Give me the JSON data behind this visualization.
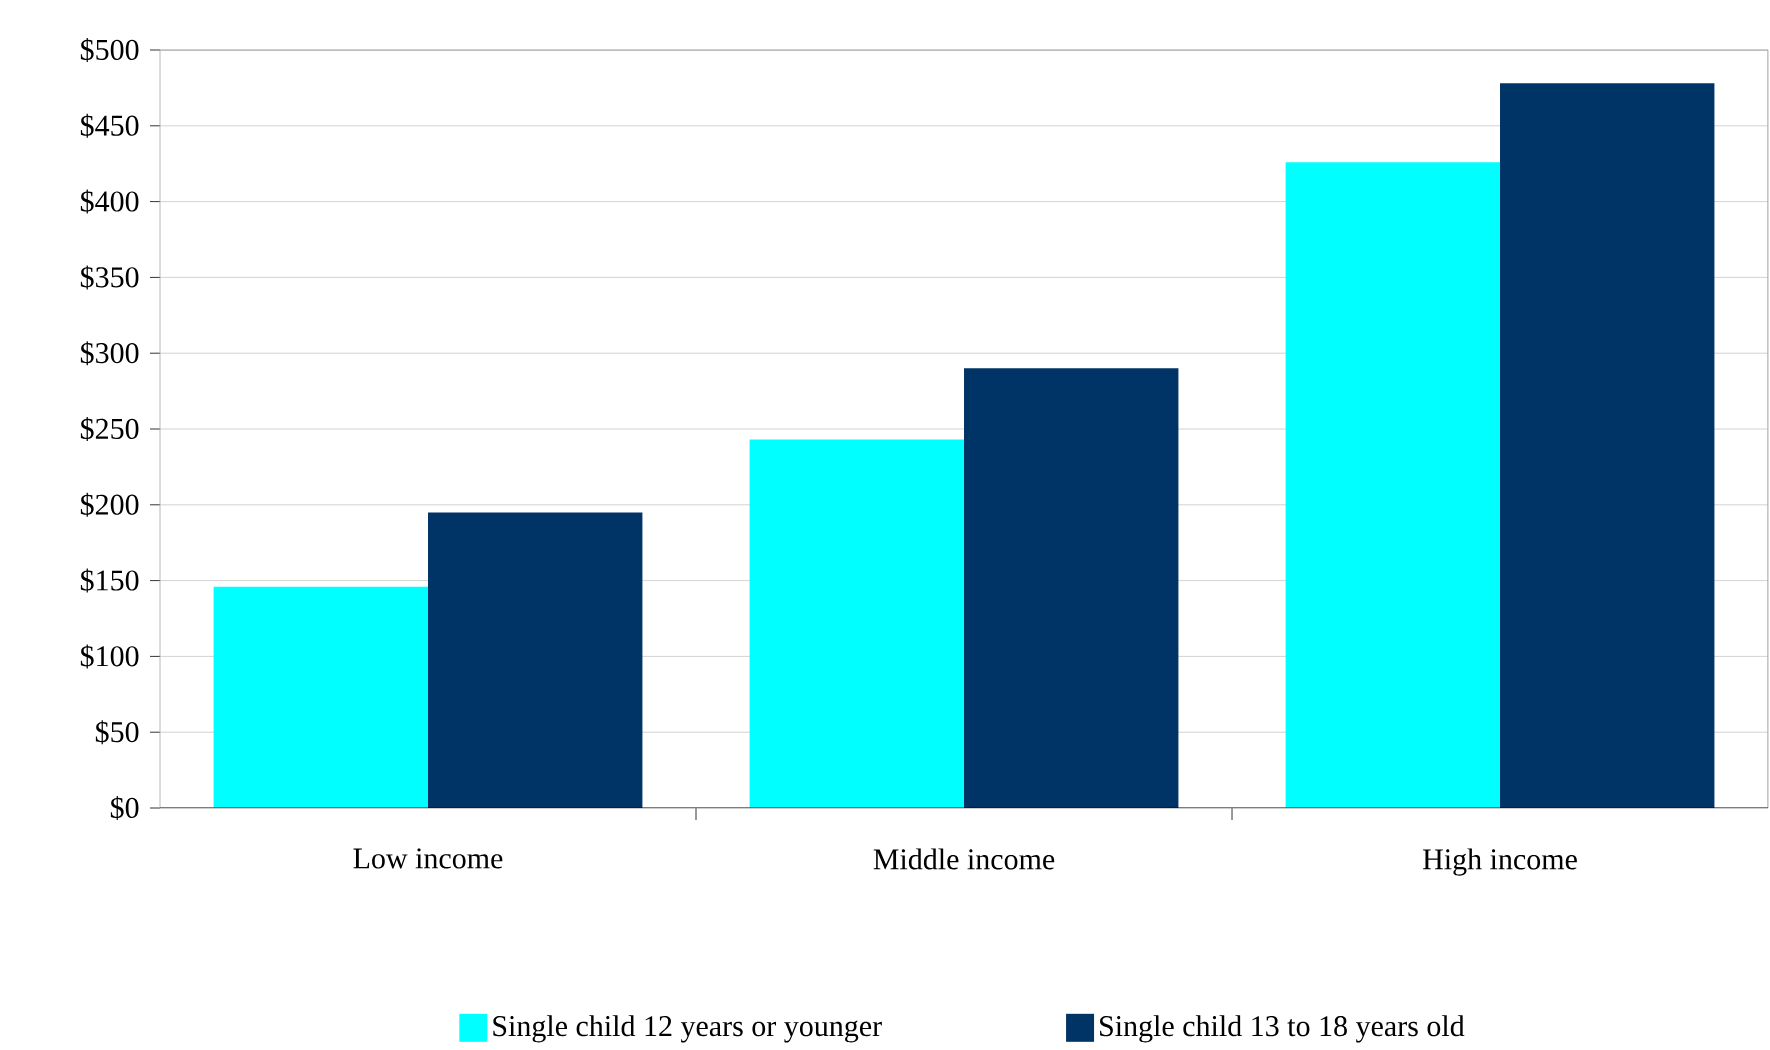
{
  "chart_data": {
    "type": "bar",
    "categories": [
      "Low income",
      "Middle income",
      "High income"
    ],
    "series": [
      {
        "name": "Single child 12 years or younger",
        "color": "#00ffff",
        "values": [
          146,
          243,
          426
        ]
      },
      {
        "name": "Single child 13 to 18 years old",
        "color": "#003366",
        "values": [
          195,
          290,
          478
        ]
      }
    ],
    "ylim": [
      0,
      500
    ],
    "yticks": [
      {
        "value": 0,
        "label": "$0"
      },
      {
        "value": 50,
        "label": "$50"
      },
      {
        "value": 100,
        "label": "$100"
      },
      {
        "value": 150,
        "label": "$150"
      },
      {
        "value": 200,
        "label": "$200"
      },
      {
        "value": 250,
        "label": "$250"
      },
      {
        "value": 300,
        "label": "$300"
      },
      {
        "value": 350,
        "label": "$350"
      },
      {
        "value": 400,
        "label": "$400"
      },
      {
        "value": 450,
        "label": "$450"
      },
      {
        "value": 500,
        "label": "$500"
      }
    ],
    "grid": "y",
    "legend": "bottom"
  }
}
